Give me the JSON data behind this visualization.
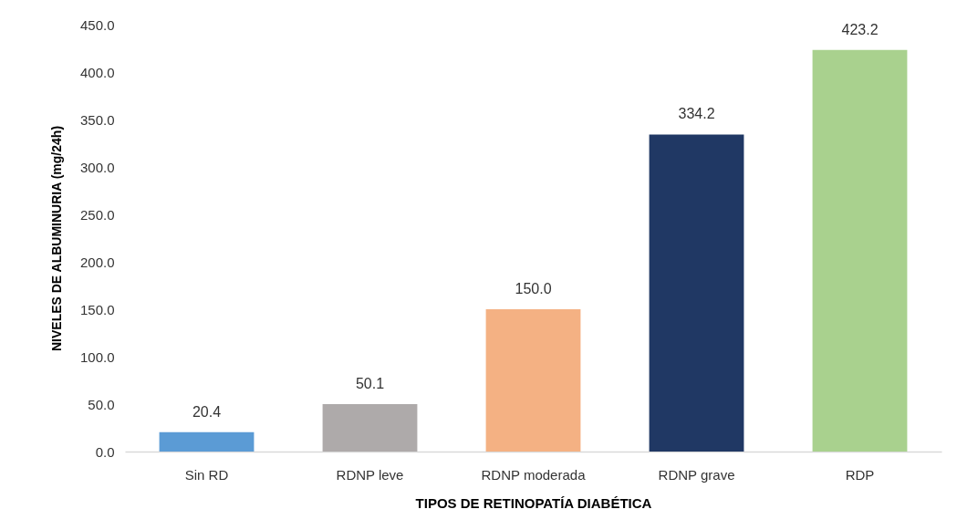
{
  "chart_data": {
    "type": "bar",
    "xlabel": "TIPOS DE RETINOPATÍA DIABÉTICA",
    "ylabel": "NIVELES  DE ALBUMINURIA  (mg/24h)",
    "categories": [
      "Sin RD",
      "RDNP leve",
      "RDNP moderada",
      "RDNP grave",
      "RDP"
    ],
    "values": [
      20.4,
      50.1,
      150.0,
      334.2,
      423.2
    ],
    "colors": [
      "#5b9bd5",
      "#aeaaaa",
      "#f4b183",
      "#203864",
      "#a9d18e"
    ],
    "value_labels": [
      "20.4",
      "50.1",
      "150.0",
      "334.2",
      "423.2"
    ],
    "ylim": [
      0,
      450
    ],
    "yticks": [
      {
        "value": 0,
        "label": "0.0"
      },
      {
        "value": 50,
        "label": "50.0"
      },
      {
        "value": 100,
        "label": "100.0"
      },
      {
        "value": 150,
        "label": "150.0"
      },
      {
        "value": 200,
        "label": "200.0"
      },
      {
        "value": 250,
        "label": "250.0"
      },
      {
        "value": 300,
        "label": "300.0"
      },
      {
        "value": 350,
        "label": "350.0"
      },
      {
        "value": 400,
        "label": "400.0"
      },
      {
        "value": 450,
        "label": "450.0"
      }
    ],
    "grid": false
  }
}
